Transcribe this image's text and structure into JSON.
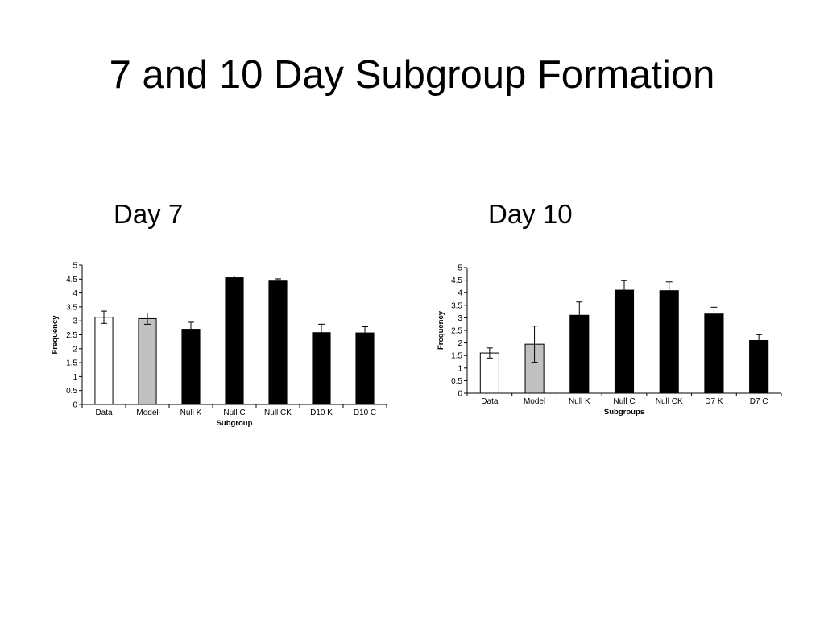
{
  "slide": {
    "title": "7 and 10 Day Subgroup Formation",
    "panel_titles": [
      "Day 7",
      "Day 10"
    ]
  },
  "chart_data": [
    {
      "type": "bar",
      "categories": [
        "Data",
        "Model",
        "Null K",
        "Null C",
        "Null CK",
        "D10 K",
        "D10 C"
      ],
      "series": [
        {
          "values": [
            3.13,
            3.08,
            2.7,
            4.55,
            4.43,
            2.58,
            2.57
          ]
        }
      ],
      "error": [
        0.22,
        0.2,
        0.25,
        0.06,
        0.08,
        0.3,
        0.22
      ],
      "bar_colors": [
        "#ffffff",
        "#c0c0c0",
        "#000000",
        "#000000",
        "#000000",
        "#000000",
        "#000000"
      ],
      "xlabel": "Subgroup",
      "ylabel": "Frequency",
      "ylim": [
        0,
        5
      ],
      "yticks": [
        "0",
        "0.5",
        "1",
        "1.5",
        "2",
        "2.5",
        "3",
        "3.5",
        "4",
        "4.5",
        "5"
      ],
      "grid": false
    },
    {
      "type": "bar",
      "categories": [
        "Data",
        "Model",
        "Null K",
        "Null C",
        "Null CK",
        "D7 K",
        "D7 C"
      ],
      "series": [
        {
          "values": [
            1.6,
            1.95,
            3.1,
            4.1,
            4.08,
            3.15,
            2.1
          ]
        }
      ],
      "error": [
        0.2,
        0.72,
        0.53,
        0.38,
        0.35,
        0.27,
        0.23
      ],
      "bar_colors": [
        "#ffffff",
        "#c0c0c0",
        "#000000",
        "#000000",
        "#000000",
        "#000000",
        "#000000"
      ],
      "xlabel": "Subgroups",
      "ylabel": "Frequency",
      "ylim": [
        0,
        5
      ],
      "yticks": [
        "0",
        "0.5",
        "1",
        "1.5",
        "2",
        "2.5",
        "3",
        "3.5",
        "4",
        "4.5",
        "5"
      ],
      "grid": false
    }
  ]
}
